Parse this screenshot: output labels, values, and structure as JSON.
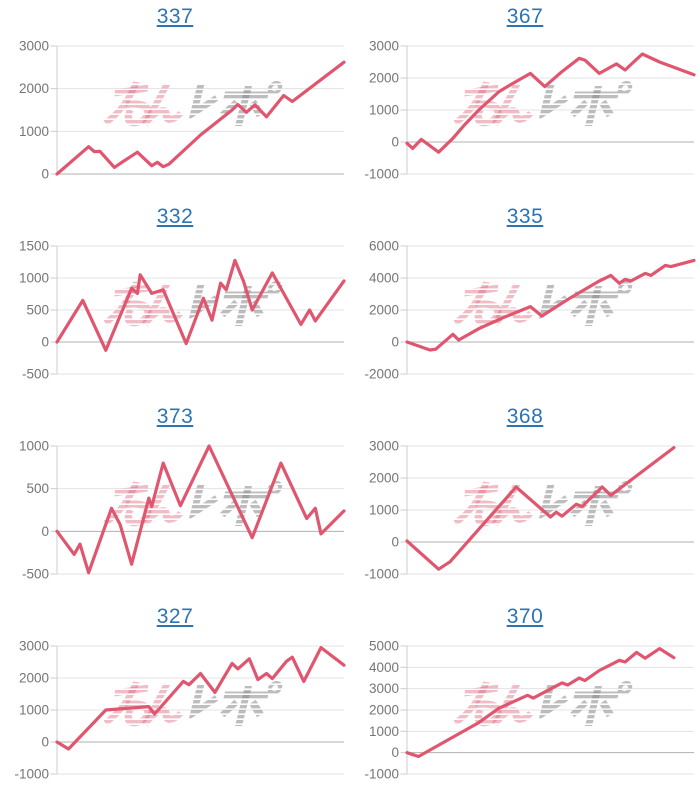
{
  "page": {
    "background": "#ffffff"
  },
  "style": {
    "line_color": "#e0566f",
    "title_color": "#2c74b3",
    "label_color": "#757575",
    "grid_color": "#e3e3e3",
    "zero_line_color": "#b0b0b0",
    "axis_line_color": "#cccccc"
  },
  "watermark": {
    "pink_text": "みん",
    "gray_text": "レポ",
    "pink_color": "rgba(219,95,118,0.42)",
    "gray_color": "rgba(128,128,128,0.52)"
  },
  "chart_data": [
    {
      "title": "337",
      "type": "line",
      "ylim": [
        0,
        3000
      ],
      "y_ticks": [
        3000,
        2000,
        1000,
        0
      ],
      "xlabel": "",
      "ylabel": "",
      "grid": true,
      "legend": "none",
      "points": [
        [
          0,
          0
        ],
        [
          11,
          640
        ],
        [
          13,
          525
        ],
        [
          15,
          530
        ],
        [
          20,
          155
        ],
        [
          23,
          290
        ],
        [
          28,
          510
        ],
        [
          33,
          195
        ],
        [
          35,
          275
        ],
        [
          37,
          170
        ],
        [
          39,
          230
        ],
        [
          50,
          915
        ],
        [
          61,
          1500
        ],
        [
          63,
          1630
        ],
        [
          66,
          1445
        ],
        [
          69,
          1620
        ],
        [
          73,
          1340
        ],
        [
          79,
          1840
        ],
        [
          82,
          1700
        ],
        [
          100,
          2620
        ]
      ]
    },
    {
      "title": "367",
      "type": "line",
      "ylim": [
        -1000,
        3000
      ],
      "y_ticks": [
        3000,
        2000,
        1000,
        0,
        -1000
      ],
      "xlabel": "",
      "ylabel": "",
      "grid": true,
      "legend": "none",
      "points": [
        [
          0,
          -40
        ],
        [
          2,
          -200
        ],
        [
          5,
          80
        ],
        [
          11,
          -320
        ],
        [
          16,
          115
        ],
        [
          20,
          530
        ],
        [
          25,
          1000
        ],
        [
          32,
          1570
        ],
        [
          35,
          1730
        ],
        [
          40,
          1990
        ],
        [
          43,
          2145
        ],
        [
          48,
          1730
        ],
        [
          54,
          2200
        ],
        [
          60,
          2615
        ],
        [
          62,
          2560
        ],
        [
          67,
          2145
        ],
        [
          73,
          2440
        ],
        [
          76,
          2250
        ],
        [
          82,
          2750
        ],
        [
          88,
          2500
        ],
        [
          100,
          2100
        ]
      ]
    },
    {
      "title": "332",
      "type": "line",
      "ylim": [
        -500,
        1500
      ],
      "y_ticks": [
        1500,
        1000,
        500,
        0,
        -500
      ],
      "xlabel": "",
      "ylabel": "",
      "grid": true,
      "legend": "none",
      "points": [
        [
          0,
          0
        ],
        [
          9,
          650
        ],
        [
          17,
          -130
        ],
        [
          26,
          840
        ],
        [
          28,
          760
        ],
        [
          29,
          1050
        ],
        [
          33,
          760
        ],
        [
          37,
          815
        ],
        [
          45,
          -25
        ],
        [
          51,
          685
        ],
        [
          54,
          340
        ],
        [
          57,
          920
        ],
        [
          59,
          815
        ],
        [
          62,
          1275
        ],
        [
          65,
          945
        ],
        [
          68,
          500
        ],
        [
          75,
          1080
        ],
        [
          85,
          275
        ],
        [
          88,
          500
        ],
        [
          90,
          330
        ],
        [
          100,
          955
        ]
      ]
    },
    {
      "title": "335",
      "type": "line",
      "ylim": [
        -2000,
        6000
      ],
      "y_ticks": [
        6000,
        4000,
        2000,
        0,
        -2000
      ],
      "xlabel": "",
      "ylabel": "",
      "grid": true,
      "legend": "none",
      "points": [
        [
          0,
          0
        ],
        [
          8,
          -500
        ],
        [
          10,
          -450
        ],
        [
          16,
          480
        ],
        [
          18,
          125
        ],
        [
          25,
          830
        ],
        [
          33,
          1480
        ],
        [
          43,
          2210
        ],
        [
          47,
          1625
        ],
        [
          57,
          2770
        ],
        [
          67,
          3810
        ],
        [
          71,
          4165
        ],
        [
          74,
          3670
        ],
        [
          76,
          3920
        ],
        [
          78,
          3810
        ],
        [
          83,
          4290
        ],
        [
          85,
          4165
        ],
        [
          90,
          4790
        ],
        [
          92,
          4710
        ],
        [
          100,
          5100
        ]
      ]
    },
    {
      "title": "373",
      "type": "line",
      "ylim": [
        -500,
        1000
      ],
      "y_ticks": [
        1000,
        500,
        0,
        -500
      ],
      "xlabel": "",
      "ylabel": "",
      "grid": true,
      "legend": "none",
      "points": [
        [
          0,
          0
        ],
        [
          6,
          -270
        ],
        [
          8,
          -150
        ],
        [
          11,
          -485
        ],
        [
          19,
          270
        ],
        [
          22,
          80
        ],
        [
          26,
          -385
        ],
        [
          32,
          390
        ],
        [
          33,
          290
        ],
        [
          37,
          800
        ],
        [
          43,
          300
        ],
        [
          53,
          1000
        ],
        [
          68,
          -75
        ],
        [
          78,
          800
        ],
        [
          87,
          150
        ],
        [
          90,
          270
        ],
        [
          92,
          -30
        ],
        [
          100,
          240
        ]
      ]
    },
    {
      "title": "368",
      "type": "line",
      "ylim": [
        -1000,
        3000
      ],
      "y_ticks": [
        3000,
        2000,
        1000,
        0,
        -1000
      ],
      "xlabel": "",
      "ylabel": "",
      "grid": true,
      "legend": "none",
      "points": [
        [
          0,
          30
        ],
        [
          11,
          -850
        ],
        [
          15,
          -620
        ],
        [
          38,
          1720
        ],
        [
          50,
          780
        ],
        [
          52,
          930
        ],
        [
          54,
          805
        ],
        [
          59,
          1180
        ],
        [
          61,
          1110
        ],
        [
          68,
          1720
        ],
        [
          71,
          1460
        ],
        [
          93,
          2950
        ]
      ]
    },
    {
      "title": "327",
      "type": "line",
      "ylim": [
        -1000,
        3000
      ],
      "y_ticks": [
        3000,
        2000,
        1000,
        0,
        -1000
      ],
      "xlabel": "",
      "ylabel": "",
      "grid": true,
      "legend": "none",
      "points": [
        [
          0,
          0
        ],
        [
          4,
          -220
        ],
        [
          17,
          1000
        ],
        [
          32,
          1105
        ],
        [
          34,
          875
        ],
        [
          44,
          1895
        ],
        [
          46,
          1790
        ],
        [
          50,
          2140
        ],
        [
          55,
          1550
        ],
        [
          61,
          2455
        ],
        [
          63,
          2285
        ],
        [
          67,
          2600
        ],
        [
          70,
          1950
        ],
        [
          73,
          2140
        ],
        [
          75,
          1980
        ],
        [
          80,
          2525
        ],
        [
          82,
          2650
        ],
        [
          86,
          1895
        ],
        [
          92,
          2950
        ],
        [
          100,
          2400
        ]
      ]
    },
    {
      "title": "370",
      "type": "line",
      "ylim": [
        -1000,
        5000
      ],
      "y_ticks": [
        5000,
        4000,
        3000,
        2000,
        1000,
        0,
        -1000
      ],
      "xlabel": "",
      "ylabel": "",
      "grid": true,
      "legend": "none",
      "points": [
        [
          0,
          0
        ],
        [
          4,
          -180
        ],
        [
          18,
          880
        ],
        [
          25,
          1410
        ],
        [
          32,
          2080
        ],
        [
          42,
          2690
        ],
        [
          44,
          2560
        ],
        [
          54,
          3270
        ],
        [
          56,
          3170
        ],
        [
          60,
          3500
        ],
        [
          62,
          3380
        ],
        [
          67,
          3850
        ],
        [
          74,
          4330
        ],
        [
          76,
          4250
        ],
        [
          80,
          4700
        ],
        [
          83,
          4430
        ],
        [
          88,
          4880
        ],
        [
          93,
          4450
        ]
      ]
    }
  ]
}
